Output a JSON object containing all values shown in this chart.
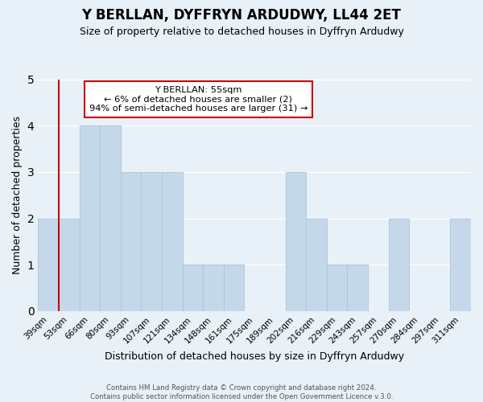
{
  "title": "Y BERLLAN, DYFFRYN ARDUDWY, LL44 2ET",
  "subtitle": "Size of property relative to detached houses in Dyffryn Ardudwy",
  "xlabel": "Distribution of detached houses by size in Dyffryn Ardudwy",
  "ylabel": "Number of detached properties",
  "footer_line1": "Contains HM Land Registry data © Crown copyright and database right 2024.",
  "footer_line2": "Contains public sector information licensed under the Open Government Licence v.3.0.",
  "bin_labels": [
    "39sqm",
    "53sqm",
    "66sqm",
    "80sqm",
    "93sqm",
    "107sqm",
    "121sqm",
    "134sqm",
    "148sqm",
    "161sqm",
    "175sqm",
    "189sqm",
    "202sqm",
    "216sqm",
    "229sqm",
    "243sqm",
    "257sqm",
    "270sqm",
    "284sqm",
    "297sqm",
    "311sqm"
  ],
  "bar_values": [
    2,
    2,
    4,
    4,
    3,
    3,
    3,
    1,
    1,
    1,
    0,
    0,
    3,
    2,
    1,
    1,
    0,
    2,
    0,
    0,
    2
  ],
  "bar_color": "#c5d8ea",
  "bar_edge_color": "#aac4dc",
  "marker_bin_index": 1,
  "marker_color": "#cc0000",
  "ylim": [
    0,
    5
  ],
  "yticks": [
    0,
    1,
    2,
    3,
    4,
    5
  ],
  "annotation_title": "Y BERLLAN: 55sqm",
  "annotation_line1": "← 6% of detached houses are smaller (2)",
  "annotation_line2": "94% of semi-detached houses are larger (31) →",
  "annotation_box_color": "#ffffff",
  "annotation_box_edge": "#cc0000",
  "bg_color": "#e8f0f8"
}
